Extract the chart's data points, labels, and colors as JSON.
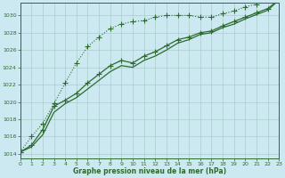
{
  "title": "Graphe pression niveau de la mer (hPa)",
  "background_color": "#cce8f0",
  "grid_color": "#aacccc",
  "line_color": "#2d6b2d",
  "xlim": [
    0,
    23
  ],
  "ylim": [
    1013.5,
    1031.5
  ],
  "yticks": [
    1014,
    1016,
    1018,
    1020,
    1022,
    1024,
    1026,
    1028,
    1030
  ],
  "xticks": [
    0,
    1,
    2,
    3,
    4,
    5,
    6,
    7,
    8,
    9,
    10,
    11,
    12,
    13,
    14,
    15,
    16,
    17,
    18,
    19,
    20,
    21,
    22,
    23
  ],
  "series1_x": [
    0,
    1,
    2,
    3,
    4,
    5,
    6,
    7,
    8,
    9,
    10,
    11,
    12,
    13,
    14,
    15,
    16,
    17,
    18,
    19,
    20,
    21,
    22,
    23
  ],
  "series1_y": [
    1014.2,
    1016.0,
    1017.5,
    1019.8,
    1022.2,
    1024.5,
    1026.4,
    1027.5,
    1028.5,
    1029.0,
    1029.3,
    1029.4,
    1029.8,
    1030.0,
    1030.0,
    1030.0,
    1029.8,
    1029.8,
    1030.2,
    1030.5,
    1031.0,
    1031.3,
    1031.8,
    1031.8
  ],
  "series2_x": [
    0,
    1,
    2,
    3,
    4,
    5,
    6,
    7,
    8,
    9,
    10,
    11,
    12,
    13,
    14,
    15,
    16,
    17,
    18,
    19,
    20,
    21,
    22,
    23
  ],
  "series2_y": [
    1014.2,
    1015.0,
    1016.8,
    1019.5,
    1020.2,
    1021.0,
    1022.2,
    1023.2,
    1024.2,
    1024.8,
    1024.5,
    1025.3,
    1025.8,
    1026.5,
    1027.2,
    1027.5,
    1028.0,
    1028.2,
    1028.8,
    1029.3,
    1029.8,
    1030.3,
    1030.8,
    1031.8
  ],
  "series3_x": [
    0,
    1,
    2,
    3,
    4,
    5,
    6,
    7,
    8,
    9,
    10,
    11,
    12,
    13,
    14,
    15,
    16,
    17,
    18,
    19,
    20,
    21,
    22,
    23
  ],
  "series3_y": [
    1014.2,
    1014.8,
    1016.2,
    1018.8,
    1019.8,
    1020.5,
    1021.5,
    1022.5,
    1023.5,
    1024.2,
    1024.0,
    1024.8,
    1025.3,
    1026.0,
    1026.8,
    1027.2,
    1027.8,
    1028.0,
    1028.6,
    1029.0,
    1029.6,
    1030.1,
    1030.6,
    1031.8
  ]
}
